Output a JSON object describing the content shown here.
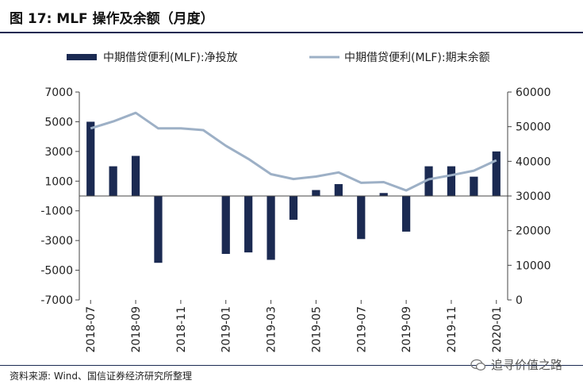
{
  "title": "图 17:  MLF 操作及余额（月度）",
  "source": "资料来源: Wind、国信证券经济研究所整理",
  "watermark": "追寻价值之路",
  "chart_data": {
    "type": "bar+line",
    "x": [
      "2018-07",
      "2018-08",
      "2018-09",
      "2018-10",
      "2018-11",
      "2018-12",
      "2019-01",
      "2019-02",
      "2019-03",
      "2019-04",
      "2019-05",
      "2019-06",
      "2019-07",
      "2019-08",
      "2019-09",
      "2019-10",
      "2019-11",
      "2019-12",
      "2020-01"
    ],
    "xticks": [
      "2018-07",
      "2018-09",
      "2018-11",
      "2019-01",
      "2019-03",
      "2019-05",
      "2019-07",
      "2019-09",
      "2019-11",
      "2020-01"
    ],
    "series": [
      {
        "name": "中期借贷便利(MLF):净投放",
        "type": "bar",
        "axis": "left",
        "color": "#1b2a52",
        "values": [
          5000,
          2000,
          2700,
          -4500,
          0,
          0,
          -3900,
          -3800,
          -4300,
          -1600,
          400,
          800,
          -2900,
          200,
          -2400,
          2000,
          2000,
          1300,
          3000
        ]
      },
      {
        "name": "中期借贷便利(MLF):期末余额",
        "type": "line",
        "axis": "right",
        "color": "#9db0c6",
        "values": [
          49500,
          51500,
          54000,
          49500,
          49500,
          49000,
          44500,
          40700,
          36300,
          34900,
          35600,
          36800,
          33800,
          34000,
          31600,
          34800,
          36000,
          37300,
          40300
        ]
      }
    ],
    "yleft": {
      "ticks": [
        "7000",
        "5000",
        "3000",
        "1000",
        "-1000",
        "-3000",
        "-5000",
        "-7000"
      ],
      "range": [
        -7000,
        7000
      ]
    },
    "yright": {
      "ticks": [
        "60000",
        "50000",
        "40000",
        "30000",
        "20000",
        "10000",
        "0"
      ],
      "range": [
        0,
        60000
      ]
    },
    "legend": "top"
  }
}
